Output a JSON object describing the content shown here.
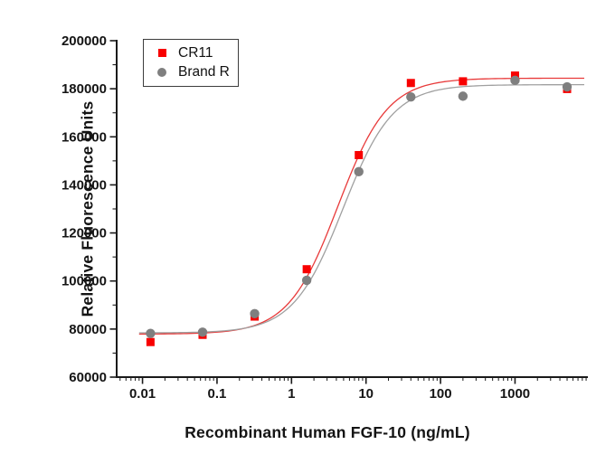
{
  "chart_data": {
    "type": "scatter",
    "title": "",
    "xlabel": "Recombinant Human FGF-10 (ng/mL)",
    "ylabel": "Relative Fluorescence Units",
    "x_scale": "log",
    "xlim": [
      0.0045,
      9500
    ],
    "ylim": [
      60000,
      200000
    ],
    "x_major_ticks": [
      0.01,
      0.1,
      1,
      10,
      100,
      1000
    ],
    "x_major_tick_labels": [
      "0.01",
      "0.1",
      "1",
      "10",
      "100",
      "1000"
    ],
    "y_major_ticks": [
      60000,
      80000,
      100000,
      120000,
      140000,
      160000,
      180000,
      200000
    ],
    "y_major_tick_labels": [
      "60000",
      "80000",
      "100000",
      "120000",
      "140000",
      "160000",
      "180000",
      "200000"
    ],
    "y_minor_step": 10000,
    "grid": false,
    "legend_position": "top-left",
    "x": [
      0.0128,
      0.064,
      0.32,
      1.6,
      8,
      40,
      200,
      1000,
      5000
    ],
    "series": [
      {
        "name": "CR11",
        "marker": "square",
        "marker_color": "#f80000",
        "line_color": "#e83a3a",
        "values": [
          74600,
          77600,
          85200,
          104900,
          152400,
          182400,
          183100,
          185500,
          179900
        ],
        "fit_4pl": {
          "bottom": 77900,
          "top": 184400,
          "ec50": 4.2,
          "hill": 1.3
        }
      },
      {
        "name": "Brand R",
        "marker": "circle",
        "marker_color": "#7f7f7f",
        "line_color": "#a0a0a0",
        "values": [
          78200,
          78700,
          86400,
          100300,
          145500,
          176600,
          176900,
          183500,
          180800
        ],
        "fit_4pl": {
          "bottom": 78400,
          "top": 181700,
          "ec50": 4.9,
          "hill": 1.3
        }
      }
    ],
    "curve_x_range": [
      0.009,
      8500
    ]
  },
  "colors": {
    "axis": "#1a1a1a",
    "text": "#141414",
    "background": "#ffffff"
  }
}
